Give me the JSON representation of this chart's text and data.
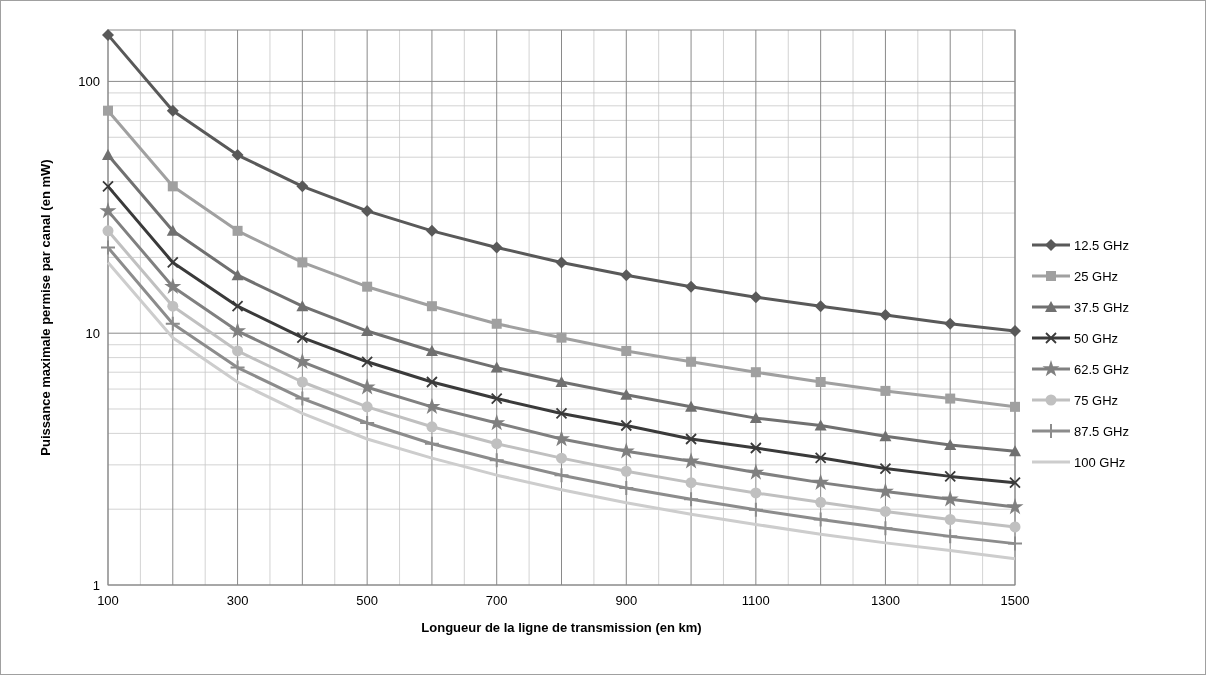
{
  "chart_data": {
    "type": "line",
    "xlabel": "Longueur de la ligne de transmission  (en km)",
    "ylabel": "Puissance maximale permise par canal  (en mW)",
    "x": [
      100,
      200,
      300,
      400,
      500,
      600,
      700,
      800,
      900,
      1000,
      1100,
      1200,
      1300,
      1400,
      1500
    ],
    "xlim": [
      100,
      1500
    ],
    "xticks": [
      100,
      {
        "value": 200,
        "label": null
      },
      300,
      {
        "value": 400,
        "label": null
      },
      500,
      {
        "value": 600,
        "label": null
      },
      700,
      {
        "value": 800,
        "label": null
      },
      900,
      {
        "value": 1000,
        "label": null
      },
      1100,
      {
        "value": 1200,
        "label": null
      },
      1300,
      {
        "value": 1400,
        "label": null
      },
      1500
    ],
    "ylim": [
      1,
      160
    ],
    "yticks": [
      1,
      10,
      100
    ],
    "log": "y",
    "grid": true,
    "legend": "right",
    "line_style": "solid",
    "series": [
      {
        "name": "12.5 GHz",
        "color": "#595959",
        "marker": "diamond",
        "values": [
          153,
          76.5,
          51,
          38.3,
          30.6,
          25.5,
          21.9,
          19.1,
          17,
          15.3,
          13.9,
          12.8,
          11.8,
          10.9,
          10.2
        ]
      },
      {
        "name": "25 GHz",
        "color": "#a0a0a0",
        "marker": "square",
        "values": [
          76.5,
          38.3,
          25.5,
          19.1,
          15.3,
          12.8,
          10.9,
          9.6,
          8.5,
          7.7,
          7.0,
          6.4,
          5.9,
          5.5,
          5.1
        ]
      },
      {
        "name": "37.5 GHz",
        "color": "#707070",
        "marker": "triangle",
        "values": [
          51,
          25.5,
          17,
          12.8,
          10.2,
          8.5,
          7.3,
          6.4,
          5.7,
          5.1,
          4.6,
          4.3,
          3.9,
          3.6,
          3.4
        ]
      },
      {
        "name": "50 GHz",
        "color": "#3a3a3a",
        "marker": "cross",
        "values": [
          38.3,
          19.1,
          12.8,
          9.6,
          7.7,
          6.4,
          5.5,
          4.8,
          4.3,
          3.8,
          3.5,
          3.2,
          2.9,
          2.7,
          2.55
        ]
      },
      {
        "name": "62.5 GHz",
        "color": "#808080",
        "marker": "star",
        "values": [
          30.6,
          15.3,
          10.2,
          7.7,
          6.1,
          5.1,
          4.4,
          3.8,
          3.4,
          3.1,
          2.8,
          2.55,
          2.35,
          2.19,
          2.04
        ]
      },
      {
        "name": "75 GHz",
        "color": "#c0c0c0",
        "marker": "circle",
        "values": [
          25.5,
          12.8,
          8.5,
          6.4,
          5.1,
          4.25,
          3.64,
          3.19,
          2.83,
          2.55,
          2.32,
          2.13,
          1.96,
          1.82,
          1.7
        ]
      },
      {
        "name": "87.5 GHz",
        "color": "#8c8c8c",
        "marker": "plus",
        "values": [
          21.9,
          10.9,
          7.3,
          5.5,
          4.4,
          3.64,
          3.13,
          2.73,
          2.43,
          2.19,
          1.99,
          1.82,
          1.68,
          1.56,
          1.46
        ]
      },
      {
        "name": "100 GHz",
        "color": "#cdcdcd",
        "marker": "none",
        "values": [
          19.1,
          9.6,
          6.4,
          4.8,
          3.8,
          3.19,
          2.73,
          2.39,
          2.12,
          1.91,
          1.74,
          1.59,
          1.47,
          1.37,
          1.27
        ]
      }
    ]
  }
}
